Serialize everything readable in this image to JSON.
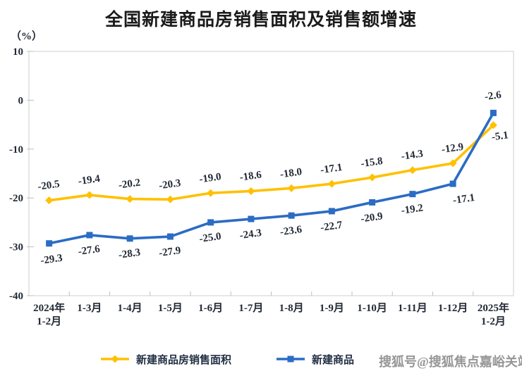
{
  "header": {
    "title": "全国新建商品房销售面积及销售额增速",
    "unit_label": "（%）"
  },
  "watermark": "搜狐号@搜狐焦点嘉峪关站",
  "legend": {
    "items": [
      {
        "label": "新建商品房销售面积",
        "marker": "diamond-marker-icon"
      },
      {
        "label": "新建商品",
        "marker": "square-marker-icon"
      }
    ]
  },
  "colors": {
    "series_area": "#FFC000",
    "series_amount": "#2B6CC4",
    "text": "#222A35",
    "axis_border": "#CFCFCF",
    "tick": "#BFBFBF",
    "watermark": "#8E8E8E"
  },
  "chart_data": {
    "type": "line",
    "title": "全国新建商品房销售面积及销售额增速",
    "ylabel": "（%）",
    "ylim": [
      -40,
      10
    ],
    "yticks": [
      10,
      0,
      -10,
      -20,
      -30,
      -40
    ],
    "grid": false,
    "legend_position": "bottom",
    "categories": [
      [
        "2024年",
        "1-2月"
      ],
      [
        "1-3月"
      ],
      [
        "1-4月"
      ],
      [
        "1-5月"
      ],
      [
        "1-6月"
      ],
      [
        "1-7月"
      ],
      [
        "1-8月"
      ],
      [
        "1-9月"
      ],
      [
        "1-10月"
      ],
      [
        "1-11月"
      ],
      [
        "1-12月"
      ],
      [
        "2025年",
        "1-2月"
      ]
    ],
    "series": [
      {
        "name": "新建商品房销售面积",
        "color": "#FFC000",
        "marker": "diamond",
        "values": [
          -20.5,
          -19.4,
          -20.2,
          -20.3,
          -19.0,
          -18.6,
          -18.0,
          -17.1,
          -15.8,
          -14.3,
          -12.9,
          -5.1
        ],
        "labels": [
          "-20.5",
          "-19.4",
          "-20.2",
          "-20.3",
          "-19.0",
          "-18.6",
          "-18.0",
          "-17.1",
          "-15.8",
          "-14.3",
          "-12.9",
          "-5.1"
        ]
      },
      {
        "name": "新建商品",
        "color": "#2B6CC4",
        "marker": "square",
        "values": [
          -29.3,
          -27.6,
          -28.3,
          -27.9,
          -25.0,
          -24.3,
          -23.6,
          -22.7,
          -20.9,
          -19.2,
          -17.1,
          -2.6
        ],
        "labels": [
          "-29.3",
          "-27.6",
          "-28.3",
          "-27.9",
          "-25.0",
          "-24.3",
          "-23.6",
          "-22.7",
          "-20.9",
          "-19.2",
          "-17.1",
          "-2.6"
        ]
      }
    ]
  }
}
